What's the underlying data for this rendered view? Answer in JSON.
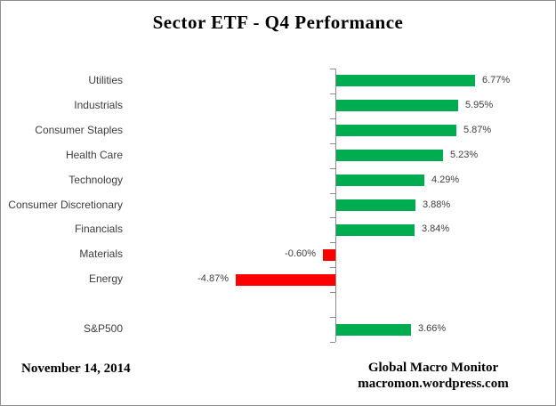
{
  "title": "Sector ETF - Q4 Performance",
  "footer": {
    "date": "November 14, 2014",
    "credit_line1": "Global Macro Monitor",
    "credit_line2": "macromon.wordpress.com"
  },
  "colors": {
    "positive_bar": "#00AC50",
    "negative_bar": "#FF0000",
    "axis": "#8C8C8C",
    "label_text": "#3d3d3d"
  },
  "chart_data": {
    "type": "bar",
    "orientation": "horizontal",
    "title": "Sector ETF - Q4 Performance",
    "categories": [
      "Utilities",
      "Industrials",
      "Consumer Staples",
      "Health Care",
      "Technology",
      "Consumer Discretionary",
      "Financials",
      "Materials",
      "Energy",
      "",
      "S&P500"
    ],
    "values": [
      6.77,
      5.95,
      5.87,
      5.23,
      4.29,
      3.88,
      3.84,
      -0.6,
      -4.87,
      null,
      3.66
    ],
    "value_labels": [
      "6.77%",
      "5.95%",
      "5.87%",
      "5.23%",
      "4.29%",
      "3.88%",
      "3.84%",
      "-0.60%",
      "-4.87%",
      "",
      "3.66%"
    ],
    "xlabel": "",
    "ylabel": "",
    "xlim": [
      -7,
      8
    ],
    "grid": false,
    "legend": false,
    "baseline": 0
  }
}
